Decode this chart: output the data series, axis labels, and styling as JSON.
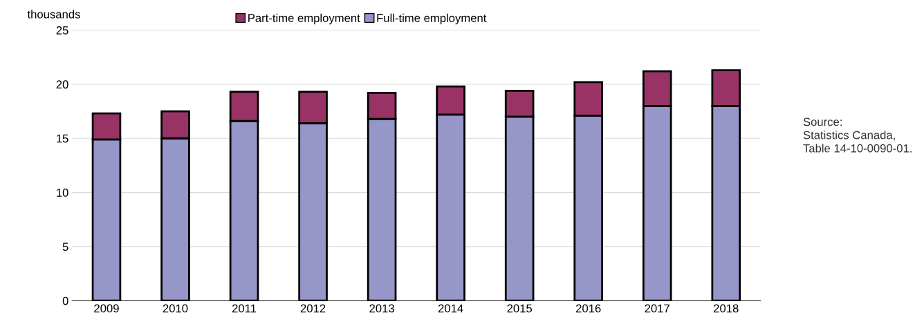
{
  "chart_data": {
    "type": "bar",
    "stacked": true,
    "ylabel": "thousands",
    "categories": [
      "2009",
      "2010",
      "2011",
      "2012",
      "2013",
      "2014",
      "2015",
      "2016",
      "2017",
      "2018"
    ],
    "series": [
      {
        "name": "Full-time employment",
        "color": "#9696c8",
        "values": [
          14.9,
          15.0,
          16.6,
          16.4,
          16.8,
          17.2,
          17.0,
          17.1,
          18.0,
          18.0
        ]
      },
      {
        "name": "Part-time employment",
        "color": "#993366",
        "values": [
          2.4,
          2.5,
          2.7,
          2.9,
          2.4,
          2.6,
          2.4,
          3.1,
          3.2,
          3.3
        ]
      }
    ],
    "ylim": [
      0,
      25
    ],
    "yticks": [
      0,
      5,
      10,
      15,
      20,
      25
    ],
    "grid": "y",
    "legend": "top",
    "annotations": [
      "Source:\nStatistics Canada,\nTable 14-10-0090-01."
    ]
  }
}
